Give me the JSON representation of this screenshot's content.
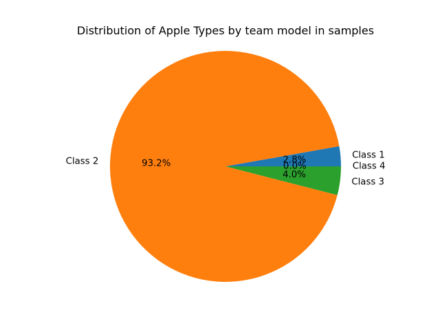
{
  "chart_data": {
    "type": "pie",
    "title": "Distribution of Apple Types by team model in samples",
    "start_angle_deg": 0,
    "direction": "counterclockwise",
    "slices": [
      {
        "label": "Class 1",
        "value": 2.8,
        "pct_label": "2.8%",
        "color": "#1f77b4"
      },
      {
        "label": "Class 2",
        "value": 93.2,
        "pct_label": "93.2%",
        "color": "#ff7f0e"
      },
      {
        "label": "Class 3",
        "value": 4.0,
        "pct_label": "4.0%",
        "color": "#2ca02c"
      },
      {
        "label": "Class 4",
        "value": 0.0,
        "pct_label": "0.0%",
        "color": "#d62728"
      }
    ]
  }
}
